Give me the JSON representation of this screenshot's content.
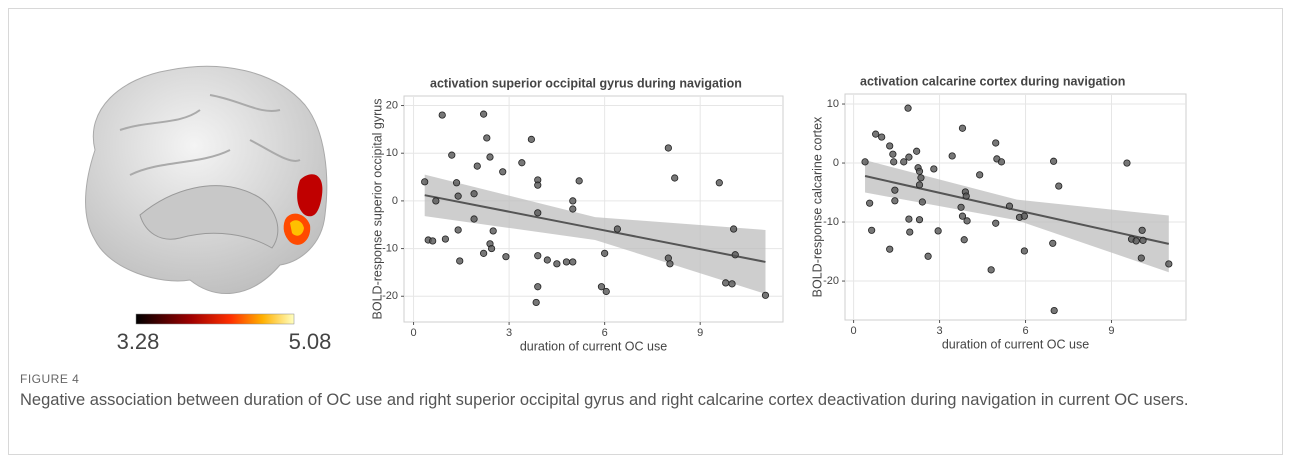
{
  "figure": {
    "label": "FIGURE 4",
    "caption": "Negative association between duration of OC use and right superior occipital gyrus and right calcarine cortex deactivation during navigation in current OC users."
  },
  "colorbar": {
    "min": 3.28,
    "max": 5.08
  },
  "chart_data": [
    {
      "type": "scatter",
      "title": "activation superior occipital gyrus during navigation",
      "xlabel": "duration of current OC use",
      "ylabel": "BOLD-response superior occipital gyrus",
      "color": "#555555",
      "grid": true,
      "xlim": [
        -0.3,
        11.6
      ],
      "ylim": [
        -25.4,
        22
      ],
      "xticks": [
        0,
        3,
        6,
        9
      ],
      "yticks": [
        -20,
        -10,
        0,
        10,
        20
      ],
      "x": [
        0.35,
        0.46,
        0.6,
        0.7,
        0.9,
        1.2,
        1.35,
        1.4,
        1.4,
        1.45,
        1.0,
        1.9,
        1.9,
        2.0,
        2.2,
        2.3,
        2.4,
        2.4,
        2.45,
        2.5,
        2.2,
        2.8,
        2.9,
        3.4,
        3.7,
        3.9,
        3.9,
        3.9,
        3.9,
        3.85,
        3.9,
        4.2,
        4.5,
        4.8,
        5.0,
        5.0,
        5.0,
        5.2,
        5.9,
        6.05,
        6.0,
        6.4,
        8.0,
        8.0,
        8.05,
        8.2,
        9.6,
        9.8,
        10.0,
        10.05,
        10.1,
        11.05
      ],
      "values": [
        4,
        -8.2,
        -8.4,
        0,
        18,
        9.6,
        3.8,
        1.0,
        -6.1,
        -12.6,
        -8,
        -3.8,
        1.5,
        7.3,
        18.2,
        13.2,
        9.2,
        -9,
        -10,
        -6.3,
        -11,
        6.1,
        -11.7,
        8,
        12.9,
        4.4,
        3.3,
        -2.5,
        -11.5,
        -21.3,
        -18,
        -12.4,
        -13.2,
        -12.8,
        -12.8,
        0,
        -1.7,
        4.2,
        -18,
        -19,
        -11,
        -5.9,
        11.1,
        -12,
        -13.2,
        4.8,
        3.8,
        -17.2,
        -17.4,
        -5.9,
        -11.3,
        -19.8
      ],
      "fit": {
        "x": [
          0.35,
          5.7,
          11.05
        ],
        "y": [
          1.2,
          -5.8,
          -12.8
        ],
        "lower": [
          -3.2,
          -8.2,
          -19.5
        ],
        "upper": [
          5.5,
          -3.4,
          -6.1
        ]
      }
    },
    {
      "type": "scatter",
      "title": "activation calcarine cortex during navigation",
      "xlabel": "duration of current OC use",
      "ylabel": "BOLD-response calcarine cortex",
      "color": "#555555",
      "grid": true,
      "xlim": [
        -0.3,
        11.6
      ],
      "ylim": [
        -26.6,
        11.7
      ],
      "xticks": [
        0,
        3,
        6,
        9
      ],
      "yticks": [
        -20,
        -10,
        0,
        10
      ],
      "x": [
        0.4,
        0.56,
        0.63,
        0.77,
        0.98,
        1.26,
        1.37,
        1.4,
        1.44,
        1.44,
        1.26,
        1.75,
        1.9,
        1.93,
        1.93,
        1.96,
        2.2,
        2.25,
        2.3,
        2.3,
        2.35,
        2.3,
        2.4,
        2.6,
        2.8,
        2.95,
        3.44,
        3.8,
        3.75,
        3.8,
        3.9,
        3.93,
        3.86,
        3.96,
        4.4,
        4.8,
        4.96,
        4.96,
        5.0,
        5.16,
        5.44,
        5.79,
        5.96,
        5.96,
        6.98,
        6.95,
        7.0,
        7.16,
        9.54,
        9.7,
        9.86,
        10.07,
        10.1,
        10.04,
        11.0
      ],
      "values": [
        0.2,
        -6.8,
        -11.4,
        4.9,
        4.4,
        2.9,
        1.5,
        0.2,
        -6.4,
        -4.6,
        -14.6,
        0.2,
        9.3,
        1,
        -9.5,
        -11.7,
        2.0,
        -0.8,
        -1.4,
        -3.7,
        -2.5,
        -9.6,
        -6.6,
        -15.8,
        -1,
        -11.5,
        1.2,
        5.9,
        -7.5,
        -9,
        -4.9,
        -5.6,
        -13,
        -9.8,
        -2,
        -18.1,
        3.4,
        -10.2,
        0.7,
        0.2,
        -7.3,
        -9.2,
        -9,
        -14.9,
        0.3,
        -13.6,
        -25,
        -3.9,
        0,
        -12.9,
        -13.2,
        -11.4,
        -13.1,
        -16.1,
        -17.1
      ],
      "fit": {
        "x": [
          0.4,
          5.7,
          11.0
        ],
        "y": [
          -2.2,
          -8.0,
          -13.7
        ],
        "lower": [
          -5.0,
          -9.7,
          -18.5
        ],
        "upper": [
          0.5,
          -6.2,
          -8.9
        ]
      }
    }
  ]
}
